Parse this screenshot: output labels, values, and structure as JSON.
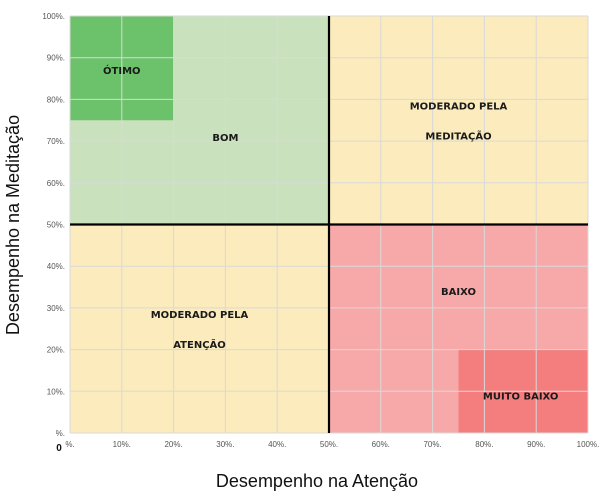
{
  "chart_data": {
    "type": "heatmap",
    "title": "",
    "xlabel": "Desempenho na Atenção",
    "ylabel": "Desempenho na Meditação",
    "xlim": [
      0,
      100
    ],
    "ylim": [
      0,
      100
    ],
    "grid": true,
    "x_ticks": [
      "%.",
      "10%.",
      "20%.",
      "30%.",
      "40%.",
      "50%.",
      "60%.",
      "70%.",
      "80%.",
      "90%.",
      "100%."
    ],
    "y_ticks": [
      "%.",
      "10%.",
      "20%.",
      "30%.",
      "40%.",
      "50%.",
      "60%.",
      "70%.",
      "80%.",
      "90%.",
      "100%."
    ],
    "origin_label": "0",
    "zones": [
      {
        "id": "bom",
        "lines": [
          "BOM"
        ],
        "x": [
          0,
          50
        ],
        "y": [
          50,
          100
        ],
        "color": "#c9e2bd",
        "label_at": [
          30,
          71
        ]
      },
      {
        "id": "otimo",
        "lines": [
          "ÓTIMO"
        ],
        "x": [
          0,
          20
        ],
        "y": [
          75,
          100
        ],
        "color": "#6cc26a",
        "label_at": [
          10,
          87
        ]
      },
      {
        "id": "moderado-meditacao",
        "lines": [
          "MODERADO PELA",
          "MEDITAÇÃO"
        ],
        "x": [
          50,
          100
        ],
        "y": [
          50,
          100
        ],
        "color": "#fbebbd",
        "label_at": [
          75,
          75
        ]
      },
      {
        "id": "moderado-atencao",
        "lines": [
          "MODERADO PELA",
          "ATENÇÃO"
        ],
        "x": [
          0,
          50
        ],
        "y": [
          0,
          50
        ],
        "color": "#fbebbd",
        "label_at": [
          25,
          25
        ]
      },
      {
        "id": "baixo",
        "lines": [
          "BAIXO"
        ],
        "x": [
          50,
          100
        ],
        "y": [
          0,
          50
        ],
        "color": "#f7a9a9",
        "label_at": [
          75,
          34
        ]
      },
      {
        "id": "muito-baixo",
        "lines": [
          "MUITO BAIXO"
        ],
        "x": [
          75,
          100
        ],
        "y": [
          0,
          20
        ],
        "color": "#f47d7d",
        "label_at": [
          87,
          9
        ]
      }
    ],
    "dividers": {
      "x": 50,
      "y": 50,
      "color": "#000000"
    },
    "grid_color": "#d9d9d9"
  }
}
